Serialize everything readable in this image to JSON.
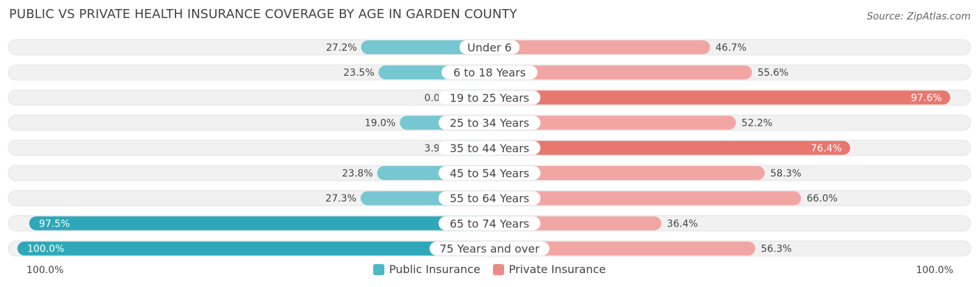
{
  "title": "PUBLIC VS PRIVATE HEALTH INSURANCE COVERAGE BY AGE IN GARDEN COUNTY",
  "source": "Source: ZipAtlas.com",
  "axis": {
    "left_label": "100.0%",
    "right_label": "100.0%"
  },
  "colors": {
    "public_light": "#76c7d1",
    "public_dark": "#2ea8b8",
    "private_light": "#f2a6a4",
    "private_dark": "#e8776f",
    "row_bg": "#efefef"
  },
  "legend": [
    {
      "label": "Public Insurance",
      "color": "#4db7c4"
    },
    {
      "label": "Private Insurance",
      "color": "#ec8a84"
    }
  ],
  "chart_data": {
    "type": "bar",
    "orientation": "horizontal-diverging",
    "categories": [
      "Under 6",
      "6 to 18 Years",
      "19 to 25 Years",
      "25 to 34 Years",
      "35 to 44 Years",
      "45 to 54 Years",
      "55 to 64 Years",
      "65 to 74 Years",
      "75 Years and over"
    ],
    "series": [
      {
        "name": "Public Insurance",
        "values": [
          27.2,
          23.5,
          0.0,
          19.0,
          3.9,
          23.8,
          27.3,
          97.5,
          100.0
        ],
        "labels": [
          "27.2%",
          "23.5%",
          "0.0%",
          "19.0%",
          "3.9%",
          "23.8%",
          "27.3%",
          "97.5%",
          "100.0%"
        ]
      },
      {
        "name": "Private Insurance",
        "values": [
          46.7,
          55.6,
          97.6,
          52.2,
          76.4,
          58.3,
          66.0,
          36.4,
          56.3
        ],
        "labels": [
          "46.7%",
          "55.6%",
          "97.6%",
          "52.2%",
          "76.4%",
          "58.3%",
          "66.0%",
          "36.4%",
          "56.3%"
        ]
      }
    ],
    "xlim": [
      -100,
      100
    ],
    "legend_position": "bottom-center"
  }
}
